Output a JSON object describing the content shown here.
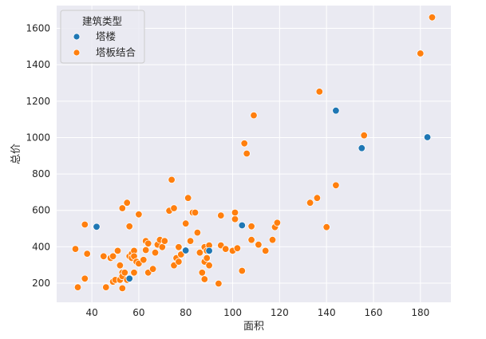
{
  "chart_data": {
    "type": "scatter",
    "xlabel": "面积",
    "ylabel": "总价",
    "xlim": [
      25,
      193
    ],
    "ylim": [
      95,
      1725
    ],
    "xticks": [
      40,
      60,
      80,
      100,
      120,
      140,
      160,
      180
    ],
    "yticks": [
      200,
      400,
      600,
      800,
      1000,
      1200,
      1400,
      1600
    ],
    "grid": true,
    "legend": {
      "title": "建筑类型",
      "placement": "top-left"
    },
    "series": [
      {
        "name": "塔楼",
        "color": "#1f77b4",
        "points": [
          [
            42,
            510
          ],
          [
            56,
            225
          ],
          [
            80,
            380
          ],
          [
            90,
            378
          ],
          [
            104,
            518
          ],
          [
            144,
            1148
          ],
          [
            155,
            942
          ],
          [
            183,
            1002
          ]
        ]
      },
      {
        "name": "塔板结合",
        "color": "#ff7f0e",
        "points": [
          [
            33,
            388
          ],
          [
            34,
            178
          ],
          [
            37,
            225
          ],
          [
            37,
            522
          ],
          [
            38,
            362
          ],
          [
            45,
            348
          ],
          [
            46,
            178
          ],
          [
            48,
            338
          ],
          [
            49,
            348
          ],
          [
            49,
            208
          ],
          [
            50,
            218
          ],
          [
            51,
            378
          ],
          [
            52,
            218
          ],
          [
            52,
            298
          ],
          [
            53,
            172
          ],
          [
            53,
            258
          ],
          [
            53,
            612
          ],
          [
            53,
            238
          ],
          [
            54,
            258
          ],
          [
            55,
            642
          ],
          [
            55,
            218
          ],
          [
            56,
            348
          ],
          [
            56,
            512
          ],
          [
            57,
            362
          ],
          [
            57,
            338
          ],
          [
            58,
            378
          ],
          [
            58,
            348
          ],
          [
            58,
            258
          ],
          [
            59,
            318
          ],
          [
            60,
            308
          ],
          [
            60,
            578
          ],
          [
            62,
            328
          ],
          [
            63,
            382
          ],
          [
            63,
            432
          ],
          [
            64,
            418
          ],
          [
            64,
            258
          ],
          [
            66,
            278
          ],
          [
            67,
            368
          ],
          [
            68,
            412
          ],
          [
            69,
            438
          ],
          [
            70,
            398
          ],
          [
            71,
            432
          ],
          [
            73,
            598
          ],
          [
            74,
            768
          ],
          [
            75,
            612
          ],
          [
            75,
            298
          ],
          [
            76,
            338
          ],
          [
            77,
            398
          ],
          [
            77,
            318
          ],
          [
            78,
            358
          ],
          [
            80,
            528
          ],
          [
            81,
            668
          ],
          [
            82,
            432
          ],
          [
            83,
            588
          ],
          [
            84,
            588
          ],
          [
            85,
            478
          ],
          [
            86,
            368
          ],
          [
            87,
            258
          ],
          [
            88,
            318
          ],
          [
            88,
            398
          ],
          [
            88,
            222
          ],
          [
            89,
            378
          ],
          [
            89,
            338
          ],
          [
            90,
            298
          ],
          [
            90,
            408
          ],
          [
            94,
            198
          ],
          [
            95,
            408
          ],
          [
            95,
            572
          ],
          [
            97,
            388
          ],
          [
            100,
            378
          ],
          [
            101,
            552
          ],
          [
            101,
            588
          ],
          [
            102,
            392
          ],
          [
            104,
            268
          ],
          [
            105,
            968
          ],
          [
            106,
            912
          ],
          [
            108,
            438
          ],
          [
            108,
            512
          ],
          [
            109,
            1122
          ],
          [
            111,
            412
          ],
          [
            114,
            378
          ],
          [
            117,
            438
          ],
          [
            118,
            508
          ],
          [
            119,
            532
          ],
          [
            133,
            642
          ],
          [
            136,
            668
          ],
          [
            137,
            1252
          ],
          [
            140,
            508
          ],
          [
            144,
            738
          ],
          [
            156,
            1012
          ],
          [
            180,
            1462
          ],
          [
            185,
            1660
          ]
        ]
      }
    ]
  }
}
